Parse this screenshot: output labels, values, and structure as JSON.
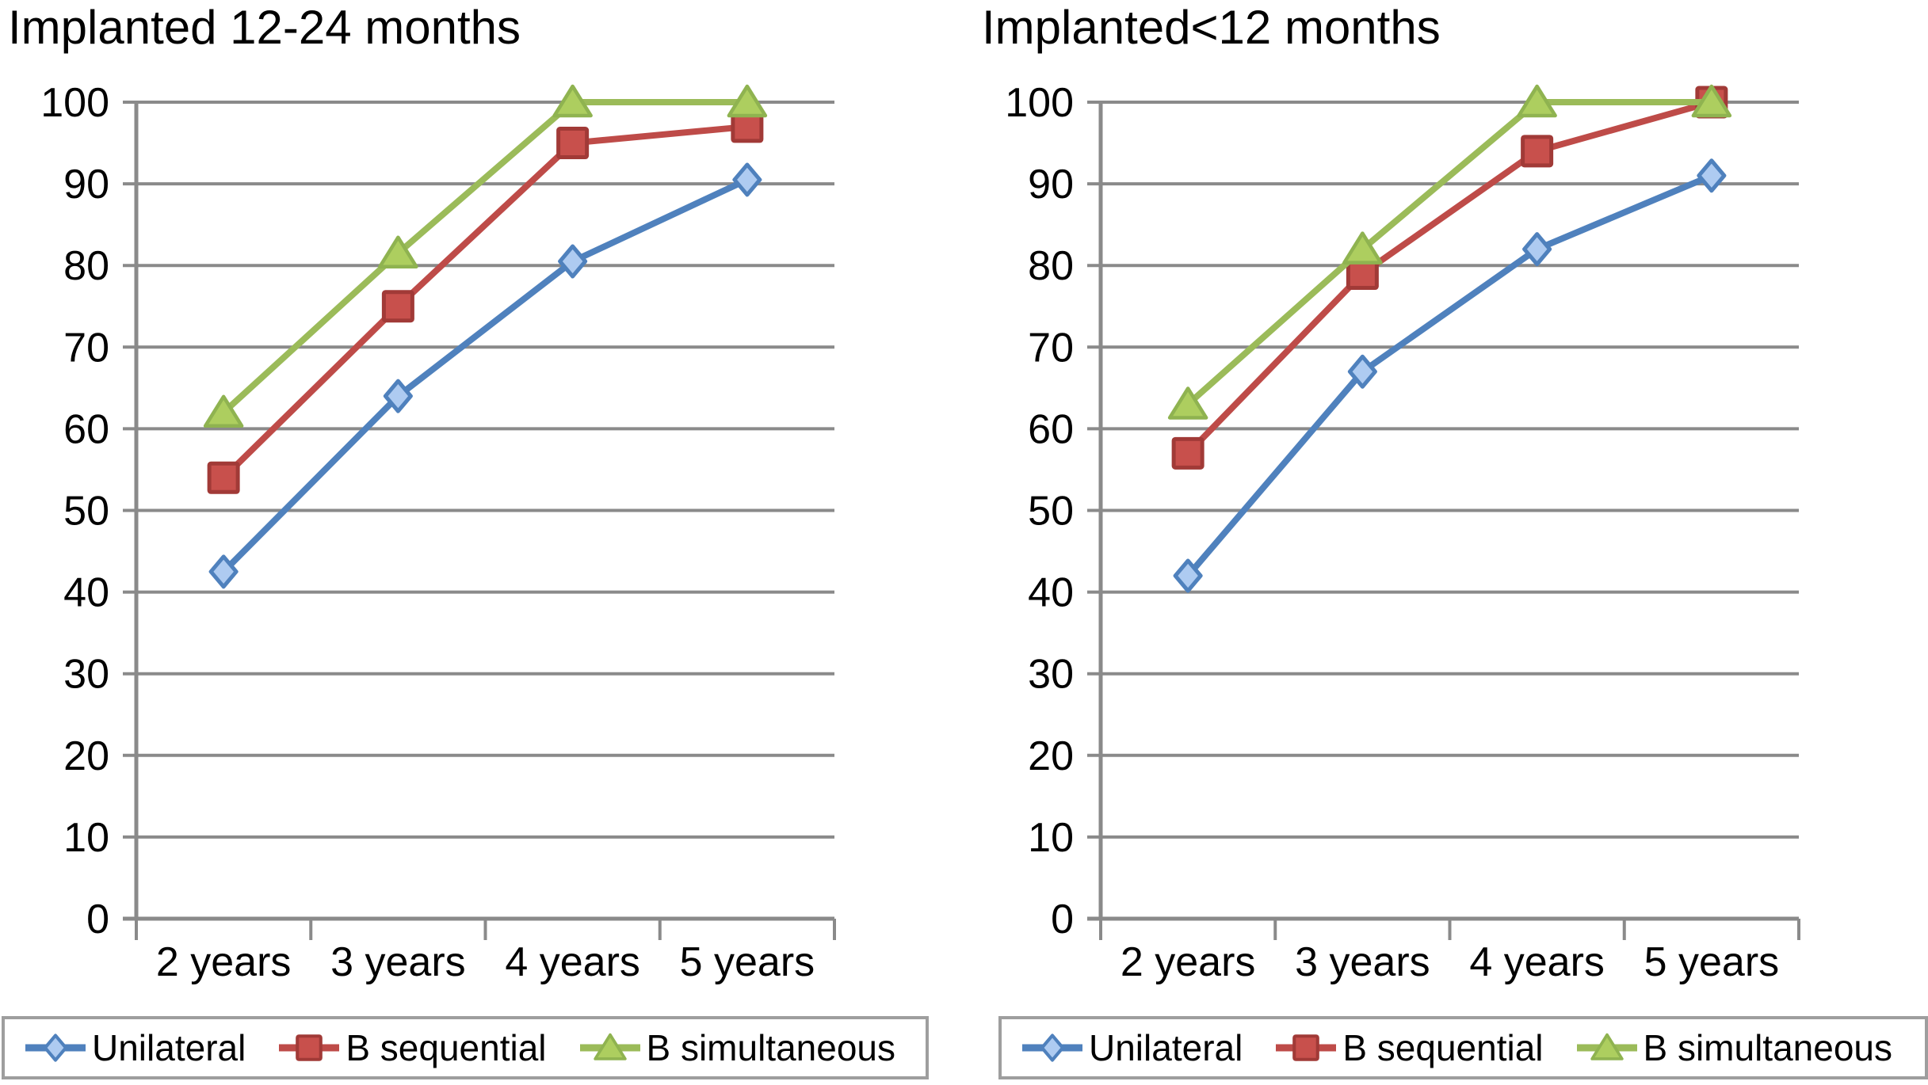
{
  "figure": {
    "background": "#ffffff"
  },
  "chart_data": [
    {
      "type": "line",
      "title": "Implanted 12-24 months",
      "categories": [
        "2 years",
        "3 years",
        "4 years",
        "5 years"
      ],
      "series": [
        {
          "name": "Unilateral",
          "marker": "diamond",
          "line_color": "#4F81BD",
          "marker_fill": "#AECBF1",
          "marker_edge": "#4F81BD",
          "values": [
            42.5,
            64,
            80.5,
            90.5
          ]
        },
        {
          "name": "B sequential",
          "marker": "square",
          "line_color": "#BE4B48",
          "marker_fill": "#C8504C",
          "marker_edge": "#A13A37",
          "values": [
            54,
            75,
            95,
            97
          ]
        },
        {
          "name": "B simultaneous",
          "marker": "triangle",
          "line_color": "#9BBB59",
          "marker_fill": "#ADCE5F",
          "marker_edge": "#8FB350",
          "values": [
            62,
            81.5,
            100,
            100
          ]
        }
      ],
      "ylim": [
        0,
        100
      ],
      "yticks": [
        0,
        10,
        20,
        30,
        40,
        50,
        60,
        70,
        80,
        90,
        100
      ],
      "grid": true,
      "legend_position": "bottom"
    },
    {
      "type": "line",
      "title": "Implanted<12 months",
      "categories": [
        "2 years",
        "3 years",
        "4 years",
        "5 years"
      ],
      "series": [
        {
          "name": "Unilateral",
          "marker": "diamond",
          "line_color": "#4F81BD",
          "marker_fill": "#AECBF1",
          "marker_edge": "#4F81BD",
          "values": [
            42,
            67,
            82,
            91
          ]
        },
        {
          "name": "B sequential",
          "marker": "square",
          "line_color": "#BE4B48",
          "marker_fill": "#C8504C",
          "marker_edge": "#A13A37",
          "values": [
            57,
            79,
            94,
            100
          ]
        },
        {
          "name": "B simultaneous",
          "marker": "triangle",
          "line_color": "#9BBB59",
          "marker_fill": "#ADCE5F",
          "marker_edge": "#8FB350",
          "values": [
            63,
            82,
            100,
            100
          ]
        }
      ],
      "ylim": [
        0,
        100
      ],
      "yticks": [
        0,
        10,
        20,
        30,
        40,
        50,
        60,
        70,
        80,
        90,
        100
      ],
      "grid": true,
      "legend_position": "bottom"
    }
  ],
  "colors": {
    "gridline": "#8A8A8A",
    "axis": "#8A8A8A",
    "legend_border": "#9E9E9E",
    "text": "#000000"
  }
}
